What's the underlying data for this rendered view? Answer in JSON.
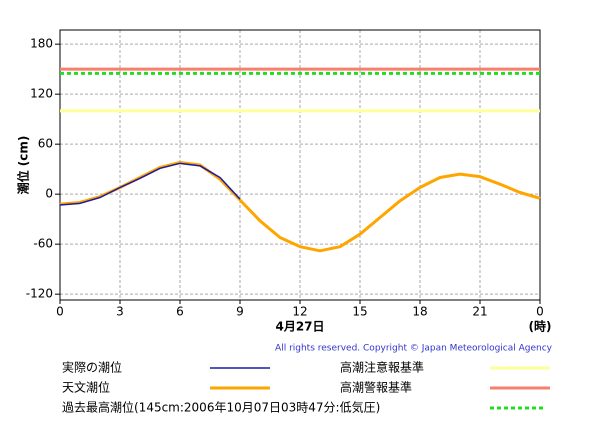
{
  "chart_data": {
    "type": "line",
    "ylabel": "潮位 (cm)",
    "xlabel": "4月27日",
    "xunit": "(時)",
    "copyright": "All rights reserved. Copyright © Japan Meteorological Agency",
    "x": [
      0,
      1,
      2,
      3,
      4,
      5,
      6,
      7,
      8,
      9,
      10,
      11,
      12,
      13,
      14,
      15,
      16,
      17,
      18,
      19,
      20,
      21,
      22,
      23,
      24
    ],
    "series": [
      {
        "name": "実際の潮位",
        "color": "#1a1aa8",
        "values": [
          -13,
          -11,
          -4,
          8,
          19,
          31,
          37,
          34,
          20,
          -6,
          null,
          null,
          null,
          null,
          null,
          null,
          null,
          null,
          null,
          null,
          null,
          null,
          null,
          null,
          null
        ]
      },
      {
        "name": "天文潮位",
        "color": "#ffa500",
        "values": [
          -12,
          -10,
          -3,
          8,
          20,
          32,
          38,
          35,
          18,
          -7,
          -32,
          -52,
          -63,
          -68,
          -63,
          -48,
          -28,
          -8,
          8,
          20,
          24,
          21,
          12,
          2,
          -5
        ]
      }
    ],
    "reference_lines": [
      {
        "name": "過去最高潮位(145cm:2006年10月07日03時47分:低気圧)",
        "value": 145,
        "color": "#22dd22",
        "dashed": true
      },
      {
        "name": "高潮注意報基準",
        "value": 100,
        "color": "#ffff99",
        "dashed": false
      },
      {
        "name": "高潮警報基準",
        "value": 150,
        "color": "#f58070",
        "dashed": false
      }
    ],
    "xlim": [
      0,
      24
    ],
    "xticks": [
      0,
      3,
      6,
      9,
      12,
      15,
      18,
      21,
      {
        "value": 24,
        "label": "0"
      }
    ],
    "ylim": [
      -127,
      197
    ],
    "yticks": [
      -120,
      -60,
      0,
      60,
      120,
      180
    ],
    "grid": true
  }
}
